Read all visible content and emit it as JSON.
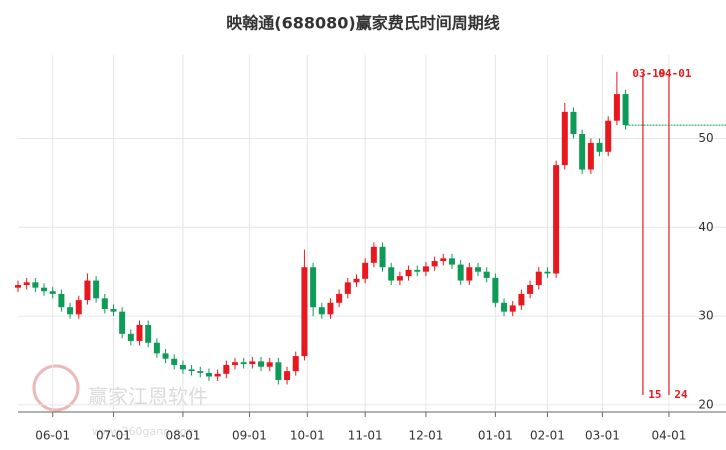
{
  "chart_data": {
    "type": "candlestick",
    "title": "映翰通(688080)赢家费氏时间周期线",
    "watermark": {
      "name": "赢家江恩软件",
      "url": "www.360gann.com"
    },
    "xlim": [
      0,
      234
    ],
    "xticks": [
      {
        "value": 12,
        "label": "06-01"
      },
      {
        "value": 33,
        "label": "07-01"
      },
      {
        "value": 57,
        "label": "08-01"
      },
      {
        "value": 80,
        "label": "09-01"
      },
      {
        "value": 100,
        "label": "10-01"
      },
      {
        "value": 120,
        "label": "11-01"
      },
      {
        "value": 141,
        "label": "12-01"
      },
      {
        "value": 165,
        "label": "01-01"
      },
      {
        "value": 183,
        "label": "02-01"
      },
      {
        "value": 202,
        "label": "03-01"
      },
      {
        "value": 225,
        "label": "04-01"
      }
    ],
    "ylim": [
      19.2,
      59.4
    ],
    "yticks": [
      20,
      30,
      40,
      50
    ],
    "grid": true,
    "up_color": "#e8191e",
    "down_color": "#0e9b57",
    "marker_color": "#e8191e",
    "markers": [
      {
        "x": 216,
        "label": "03-19",
        "count": 15
      },
      {
        "x": 225,
        "label": "04-01",
        "count": 24
      }
    ],
    "x": [
      0,
      3,
      6,
      9,
      12,
      15,
      18,
      21,
      24,
      27,
      30,
      33,
      36,
      39,
      42,
      45,
      48,
      51,
      54,
      57,
      60,
      63,
      66,
      69,
      72,
      75,
      78,
      81,
      84,
      87,
      90,
      93,
      96,
      99,
      102,
      105,
      108,
      111,
      114,
      117,
      120,
      123,
      126,
      129,
      132,
      135,
      138,
      141,
      144,
      147,
      150,
      153,
      156,
      159,
      162,
      165,
      168,
      171,
      174,
      177,
      180,
      183,
      186,
      189,
      192,
      195,
      198,
      201,
      204,
      207,
      210
    ],
    "open": [
      33.2,
      33.5,
      33.8,
      33.2,
      32.8,
      32.5,
      31.0,
      30.2,
      31.8,
      34.0,
      32.0,
      30.8,
      30.5,
      28.0,
      27.2,
      29.0,
      27.0,
      25.8,
      25.2,
      24.5,
      24.0,
      23.8,
      23.6,
      23.2,
      23.5,
      24.5,
      24.8,
      24.6,
      24.9,
      24.3,
      24.8,
      22.8,
      23.8,
      25.5,
      35.5,
      31.0,
      30.2,
      31.5,
      32.5,
      33.8,
      34.2,
      36.0,
      37.8,
      35.5,
      34.0,
      34.5,
      35.2,
      35.0,
      35.6,
      36.2,
      36.5,
      35.8,
      34.0,
      35.5,
      35.0,
      34.3,
      31.5,
      30.5,
      31.2,
      32.5,
      33.5,
      35.0,
      34.8,
      47.0,
      53.0,
      50.5,
      46.5,
      49.5,
      48.5,
      52.0,
      55.0
    ],
    "high": [
      34.0,
      34.3,
      34.3,
      33.7,
      33.3,
      33.0,
      31.5,
      32.3,
      34.8,
      34.5,
      32.5,
      31.3,
      31.0,
      28.5,
      29.5,
      29.5,
      27.5,
      26.3,
      25.7,
      25.0,
      24.5,
      24.3,
      24.1,
      24.0,
      25.0,
      25.3,
      25.3,
      25.4,
      25.4,
      25.3,
      25.3,
      24.3,
      26.0,
      37.5,
      36.0,
      31.5,
      32.0,
      33.0,
      34.3,
      34.7,
      36.5,
      38.3,
      38.3,
      36.0,
      35.0,
      35.7,
      35.7,
      36.1,
      36.7,
      37.0,
      37.0,
      36.3,
      36.0,
      36.0,
      35.5,
      34.8,
      32.0,
      31.7,
      33.0,
      34.0,
      35.5,
      35.5,
      47.5,
      54.0,
      53.5,
      51.0,
      50.0,
      50.0,
      52.5,
      57.5,
      55.5
    ],
    "low": [
      32.7,
      33.0,
      32.7,
      32.3,
      32.0,
      30.5,
      29.7,
      29.7,
      31.3,
      31.5,
      30.3,
      30.0,
      27.5,
      26.7,
      26.7,
      26.5,
      25.3,
      24.7,
      24.0,
      23.5,
      23.3,
      23.1,
      22.7,
      22.7,
      23.0,
      24.0,
      24.1,
      24.1,
      23.8,
      23.8,
      22.3,
      22.3,
      23.3,
      25.0,
      30.0,
      29.7,
      29.7,
      31.0,
      32.0,
      33.3,
      33.7,
      35.5,
      35.0,
      33.5,
      33.5,
      34.0,
      34.5,
      34.5,
      35.1,
      35.7,
      35.3,
      33.5,
      33.5,
      34.5,
      33.8,
      31.0,
      30.0,
      30.0,
      30.7,
      32.0,
      33.0,
      34.3,
      34.3,
      46.5,
      50.0,
      46.0,
      46.0,
      48.0,
      48.0,
      51.5,
      51.0
    ],
    "close": [
      33.5,
      33.8,
      33.2,
      32.8,
      32.5,
      31.0,
      30.2,
      31.8,
      34.0,
      32.0,
      30.8,
      30.5,
      28.0,
      27.2,
      29.0,
      27.0,
      25.8,
      25.2,
      24.5,
      24.0,
      23.8,
      23.6,
      23.2,
      23.5,
      24.5,
      24.8,
      24.6,
      24.9,
      24.3,
      24.8,
      22.8,
      23.8,
      25.5,
      35.5,
      31.0,
      30.2,
      31.5,
      32.5,
      33.8,
      34.2,
      36.0,
      37.8,
      35.5,
      34.0,
      34.5,
      35.2,
      35.0,
      35.6,
      36.2,
      36.5,
      35.8,
      34.0,
      35.5,
      35.0,
      34.3,
      31.5,
      30.5,
      31.2,
      32.5,
      33.5,
      35.0,
      34.8,
      47.0,
      53.0,
      50.5,
      46.5,
      49.5,
      48.5,
      52.0,
      55.0,
      51.5
    ]
  }
}
